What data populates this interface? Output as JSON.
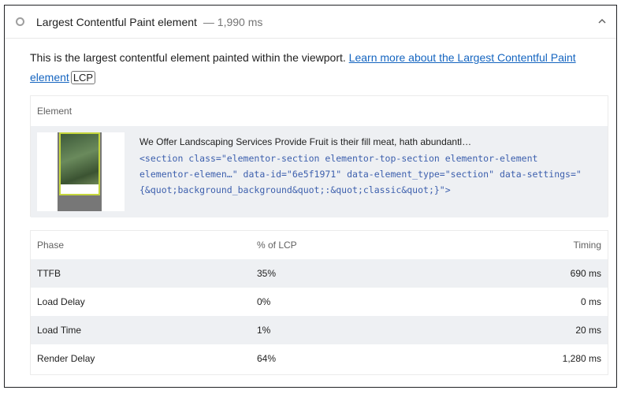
{
  "header": {
    "title": "Largest Contentful Paint element",
    "value": "— 1,990 ms",
    "status_icon": "circle-icon",
    "toggle_icon": "chevron-up-icon"
  },
  "description": {
    "text": "This is the largest contentful element painted within the viewport. ",
    "link": "Learn more about the Largest Contentful Paint element",
    "badge": "LCP"
  },
  "element_table": {
    "header": "Element",
    "snippet": "We Offer Landscaping Services Provide Fruit is their fill meat, hath abundantl…",
    "code": [
      "<section class=\"elementor-section elementor-top-section elementor-element",
      "elementor-elemen…\" data-id=\"6e5f1971\" data-element_type=\"section\" data-settings=\"",
      "{&quot;background_background&quot;:&quot;classic&quot;}\">"
    ]
  },
  "phase_table": {
    "headers": [
      "Phase",
      "% of LCP",
      "Timing"
    ],
    "rows": [
      [
        "TTFB",
        "35%",
        "690 ms"
      ],
      [
        "Load Delay",
        "0%",
        "0 ms"
      ],
      [
        "Load Time",
        "1%",
        "20 ms"
      ],
      [
        "Render Delay",
        "64%",
        "1,280 ms"
      ]
    ]
  }
}
